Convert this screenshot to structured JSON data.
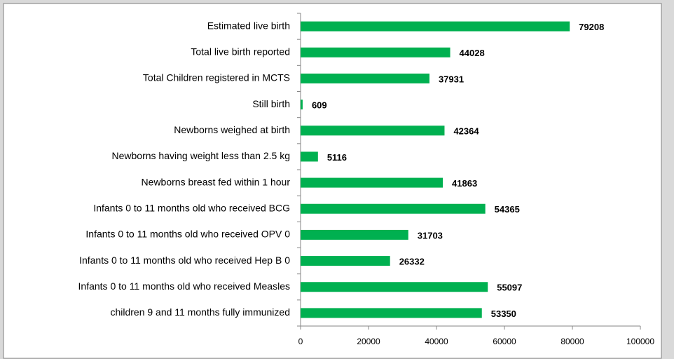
{
  "chart_data": {
    "type": "bar",
    "orientation": "horizontal",
    "categories": [
      "Estimated live birth",
      "Total live birth reported",
      "Total Children registered in MCTS",
      "Still birth",
      "Newborns weighed at birth",
      "Newborns having weight less than 2.5 kg",
      "Newborns breast fed within 1 hour",
      "Infants 0 to 11 months old who received BCG",
      "Infants 0 to 11 months old who received OPV 0",
      "Infants 0 to 11 months old who received Hep B 0",
      "Infants 0 to 11 months old who received Measles",
      "children 9 and 11 months fully immunized"
    ],
    "values": [
      79208,
      44028,
      37931,
      609,
      42364,
      5116,
      41863,
      54365,
      31703,
      26332,
      55097,
      53350
    ],
    "color": "#00b050",
    "xlim": [
      0,
      100000
    ],
    "xticks": [
      0,
      20000,
      40000,
      60000,
      80000,
      100000
    ],
    "grid": false
  }
}
